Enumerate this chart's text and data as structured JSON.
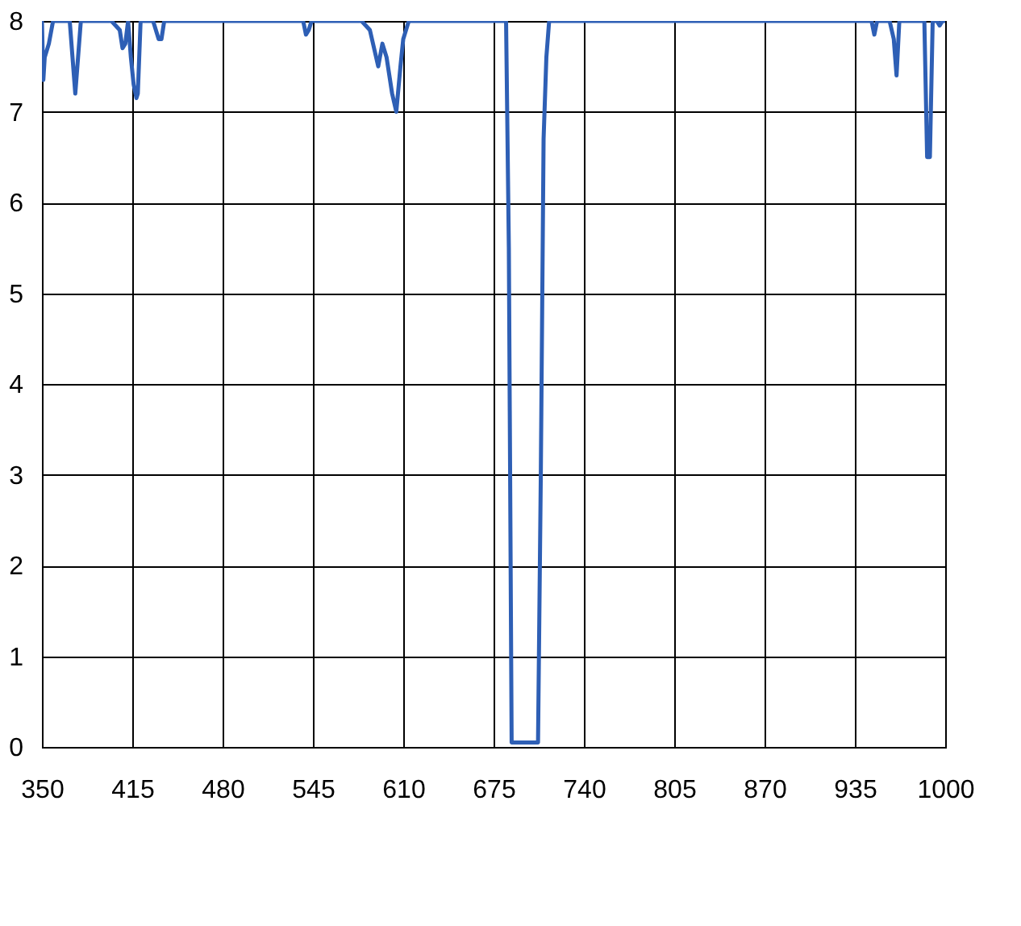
{
  "chart_data": {
    "type": "line",
    "x": [
      350,
      351,
      352,
      355,
      358,
      360,
      370,
      372,
      374,
      376,
      378,
      400,
      406,
      408,
      410,
      412,
      414,
      416,
      418,
      419,
      421,
      423,
      430,
      434,
      436,
      438,
      500,
      538,
      540,
      542,
      544,
      580,
      586,
      589,
      592,
      595,
      598,
      600,
      602,
      605,
      608,
      610,
      612,
      614,
      616,
      618,
      620,
      640,
      680,
      684,
      686,
      688,
      697,
      707,
      709,
      711,
      713,
      715,
      720,
      940,
      947,
      949,
      951,
      960,
      963,
      965,
      967,
      980,
      985,
      987,
      989,
      991,
      994,
      996,
      998,
      1000
    ],
    "series": [
      {
        "color": "#2e5fb5",
        "values": [
          8,
          7.35,
          7.6,
          7.75,
          8,
          8,
          8,
          7.6,
          7.2,
          7.6,
          8,
          8,
          7.9,
          7.7,
          7.75,
          8,
          7.6,
          7.3,
          7.15,
          7.2,
          8,
          8,
          8,
          7.8,
          7.8,
          8,
          8,
          8,
          7.85,
          7.9,
          8,
          8,
          7.9,
          7.7,
          7.5,
          7.75,
          7.6,
          7.4,
          7.2,
          7.0,
          7.5,
          7.8,
          7.9,
          8,
          8,
          8,
          8,
          8,
          8,
          8,
          5.5,
          0.05,
          0.05,
          0.05,
          3,
          6.7,
          7.6,
          8,
          8,
          8,
          8,
          7.85,
          8,
          8,
          7.8,
          7.4,
          8,
          8,
          8,
          6.5,
          6.5,
          8,
          8,
          7.95,
          8,
          8
        ]
      }
    ],
    "xlim": [
      350,
      1000
    ],
    "xticks": [
      350,
      415,
      480,
      545,
      610,
      675,
      740,
      805,
      870,
      935,
      1000
    ],
    "ylim": [
      0,
      8
    ],
    "yticks": [
      0,
      1,
      2,
      3,
      4,
      5,
      6,
      7,
      8
    ],
    "grid": true
  }
}
